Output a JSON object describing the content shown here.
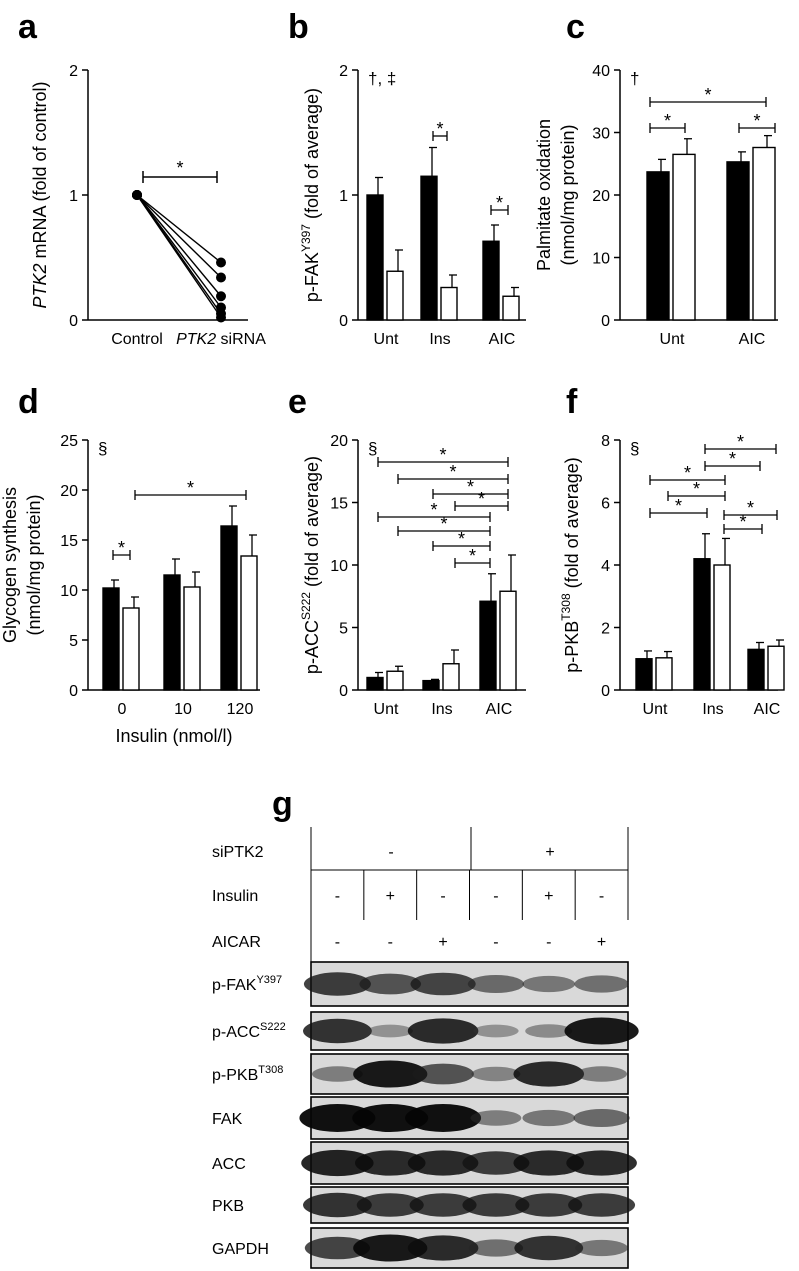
{
  "panels": [
    {
      "id": "a",
      "letter": "a"
    },
    {
      "id": "b",
      "letter": "b"
    },
    {
      "id": "c",
      "letter": "c"
    },
    {
      "id": "d",
      "letter": "d"
    },
    {
      "id": "e",
      "letter": "e"
    },
    {
      "id": "f",
      "letter": "f"
    },
    {
      "id": "g",
      "letter": "g"
    }
  ],
  "chart_data": [
    {
      "panel": "a",
      "type": "line",
      "ylabel_italic": "PTK2",
      "ylabel_rest": " mRNA (fold of control)",
      "categories": [
        "Control",
        "PTK2 siRNA"
      ],
      "category_labels": [
        {
          "plain": "Control"
        },
        {
          "italic": "PTK2",
          "plain": " siRNA"
        }
      ],
      "ylim": [
        0,
        2
      ],
      "yticks": [
        0,
        1,
        2
      ],
      "series": [
        {
          "values": [
            1,
            0.46
          ]
        },
        {
          "values": [
            1,
            0.34
          ]
        },
        {
          "values": [
            1,
            0.19
          ]
        },
        {
          "values": [
            1,
            0.1
          ]
        },
        {
          "values": [
            1,
            0.05
          ]
        },
        {
          "values": [
            1,
            0.02
          ]
        }
      ],
      "annotations": [
        "*"
      ]
    },
    {
      "panel": "b",
      "type": "bar",
      "ylabel": "p-FAK",
      "ylabel_sup": "Y397",
      "ylabel_tail": " (fold of average)",
      "categories": [
        "Unt",
        "Ins",
        "AIC"
      ],
      "ylim": [
        0,
        2
      ],
      "yticks": [
        0,
        1,
        2
      ],
      "series": [
        {
          "fill": "#000000",
          "values": [
            1.0,
            1.15,
            0.63
          ],
          "errors": [
            0.14,
            0.23,
            0.13
          ]
        },
        {
          "fill": "#ffffff",
          "values": [
            0.39,
            0.26,
            0.19
          ],
          "errors": [
            0.17,
            0.1,
            0.07
          ]
        }
      ],
      "note": "†, ‡"
    },
    {
      "panel": "c",
      "type": "bar",
      "ylabel_line1": "Palmitate oxidation",
      "ylabel_line2": "(nmol/mg protein)",
      "categories": [
        "Unt",
        "AIC"
      ],
      "ylim": [
        0,
        40
      ],
      "yticks": [
        0,
        10,
        20,
        30,
        40
      ],
      "series": [
        {
          "fill": "#000000",
          "values": [
            23.7,
            25.3
          ],
          "errors": [
            2.0,
            1.6
          ]
        },
        {
          "fill": "#ffffff",
          "values": [
            26.5,
            27.6
          ],
          "errors": [
            2.5,
            1.9
          ]
        }
      ],
      "note": "†"
    },
    {
      "panel": "d",
      "type": "bar",
      "ylabel_line1": "Glycogen synthesis",
      "ylabel_line2": "(nmol/mg protein)",
      "xlabel": "Insulin (nmol/l)",
      "categories": [
        "0",
        "10",
        "120"
      ],
      "ylim": [
        0,
        25
      ],
      "yticks": [
        0,
        5,
        10,
        15,
        20,
        25
      ],
      "series": [
        {
          "fill": "#000000",
          "values": [
            10.2,
            11.5,
            16.4
          ],
          "errors": [
            0.8,
            1.6,
            2.0
          ]
        },
        {
          "fill": "#ffffff",
          "values": [
            8.2,
            10.3,
            13.4
          ],
          "errors": [
            1.1,
            1.5,
            2.1
          ]
        }
      ],
      "note": "§"
    },
    {
      "panel": "e",
      "type": "bar",
      "ylabel": "p-ACC",
      "ylabel_sup": "S222",
      "ylabel_tail": " (fold of average)",
      "categories": [
        "Unt",
        "Ins",
        "AIC"
      ],
      "ylim": [
        0,
        20
      ],
      "yticks": [
        0,
        5,
        10,
        15,
        20
      ],
      "series": [
        {
          "fill": "#000000",
          "values": [
            1.0,
            0.75,
            7.1
          ],
          "errors": [
            0.4,
            0.1,
            2.2
          ]
        },
        {
          "fill": "#ffffff",
          "values": [
            1.5,
            2.1,
            7.9
          ],
          "errors": [
            0.4,
            1.1,
            2.9
          ]
        }
      ],
      "note": "§"
    },
    {
      "panel": "f",
      "type": "bar",
      "ylabel": "p-PKB",
      "ylabel_sup": "T308",
      "ylabel_tail": " (fold of average)",
      "categories": [
        "Unt",
        "Ins",
        "AIC"
      ],
      "ylim": [
        0,
        8
      ],
      "yticks": [
        0,
        2,
        4,
        6,
        8
      ],
      "series": [
        {
          "fill": "#000000",
          "values": [
            1.0,
            4.2,
            1.3
          ],
          "errors": [
            0.25,
            0.8,
            0.22
          ]
        },
        {
          "fill": "#ffffff",
          "values": [
            1.03,
            4.0,
            1.4
          ],
          "errors": [
            0.2,
            0.85,
            0.2
          ]
        }
      ],
      "note": "§"
    }
  ],
  "blot": {
    "header_labels": {
      "siptk2": "siPTK2",
      "insulin": "Insulin",
      "aicar": "AICAR"
    },
    "groups": [
      "-",
      "+"
    ],
    "insulin": [
      "-",
      "+",
      "-",
      "-",
      "+",
      "-"
    ],
    "aicar": [
      "-",
      "-",
      "+",
      "-",
      "-",
      "+"
    ],
    "rows": [
      {
        "label": "p-FAK",
        "sup": "Y397",
        "bands": [
          0.75,
          0.6,
          0.7,
          0.45,
          0.35,
          0.4
        ]
      },
      {
        "label": "p-ACC",
        "sup": "S222",
        "bands": [
          0.8,
          0.15,
          0.85,
          0.15,
          0.2,
          0.95
        ]
      },
      {
        "label": "p-PKB",
        "sup": "T308",
        "bands": [
          0.3,
          0.95,
          0.6,
          0.25,
          0.85,
          0.3
        ]
      },
      {
        "label": "FAK",
        "sup": "",
        "bands": [
          1.0,
          1.0,
          1.0,
          0.3,
          0.35,
          0.45
        ]
      },
      {
        "label": "ACC",
        "sup": "",
        "bands": [
          0.9,
          0.85,
          0.85,
          0.75,
          0.85,
          0.85
        ]
      },
      {
        "label": "PKB",
        "sup": "",
        "bands": [
          0.8,
          0.75,
          0.75,
          0.75,
          0.75,
          0.75
        ]
      },
      {
        "label": "GAPDH",
        "sup": "",
        "bands": [
          0.7,
          0.95,
          0.85,
          0.4,
          0.8,
          0.35
        ]
      }
    ]
  }
}
